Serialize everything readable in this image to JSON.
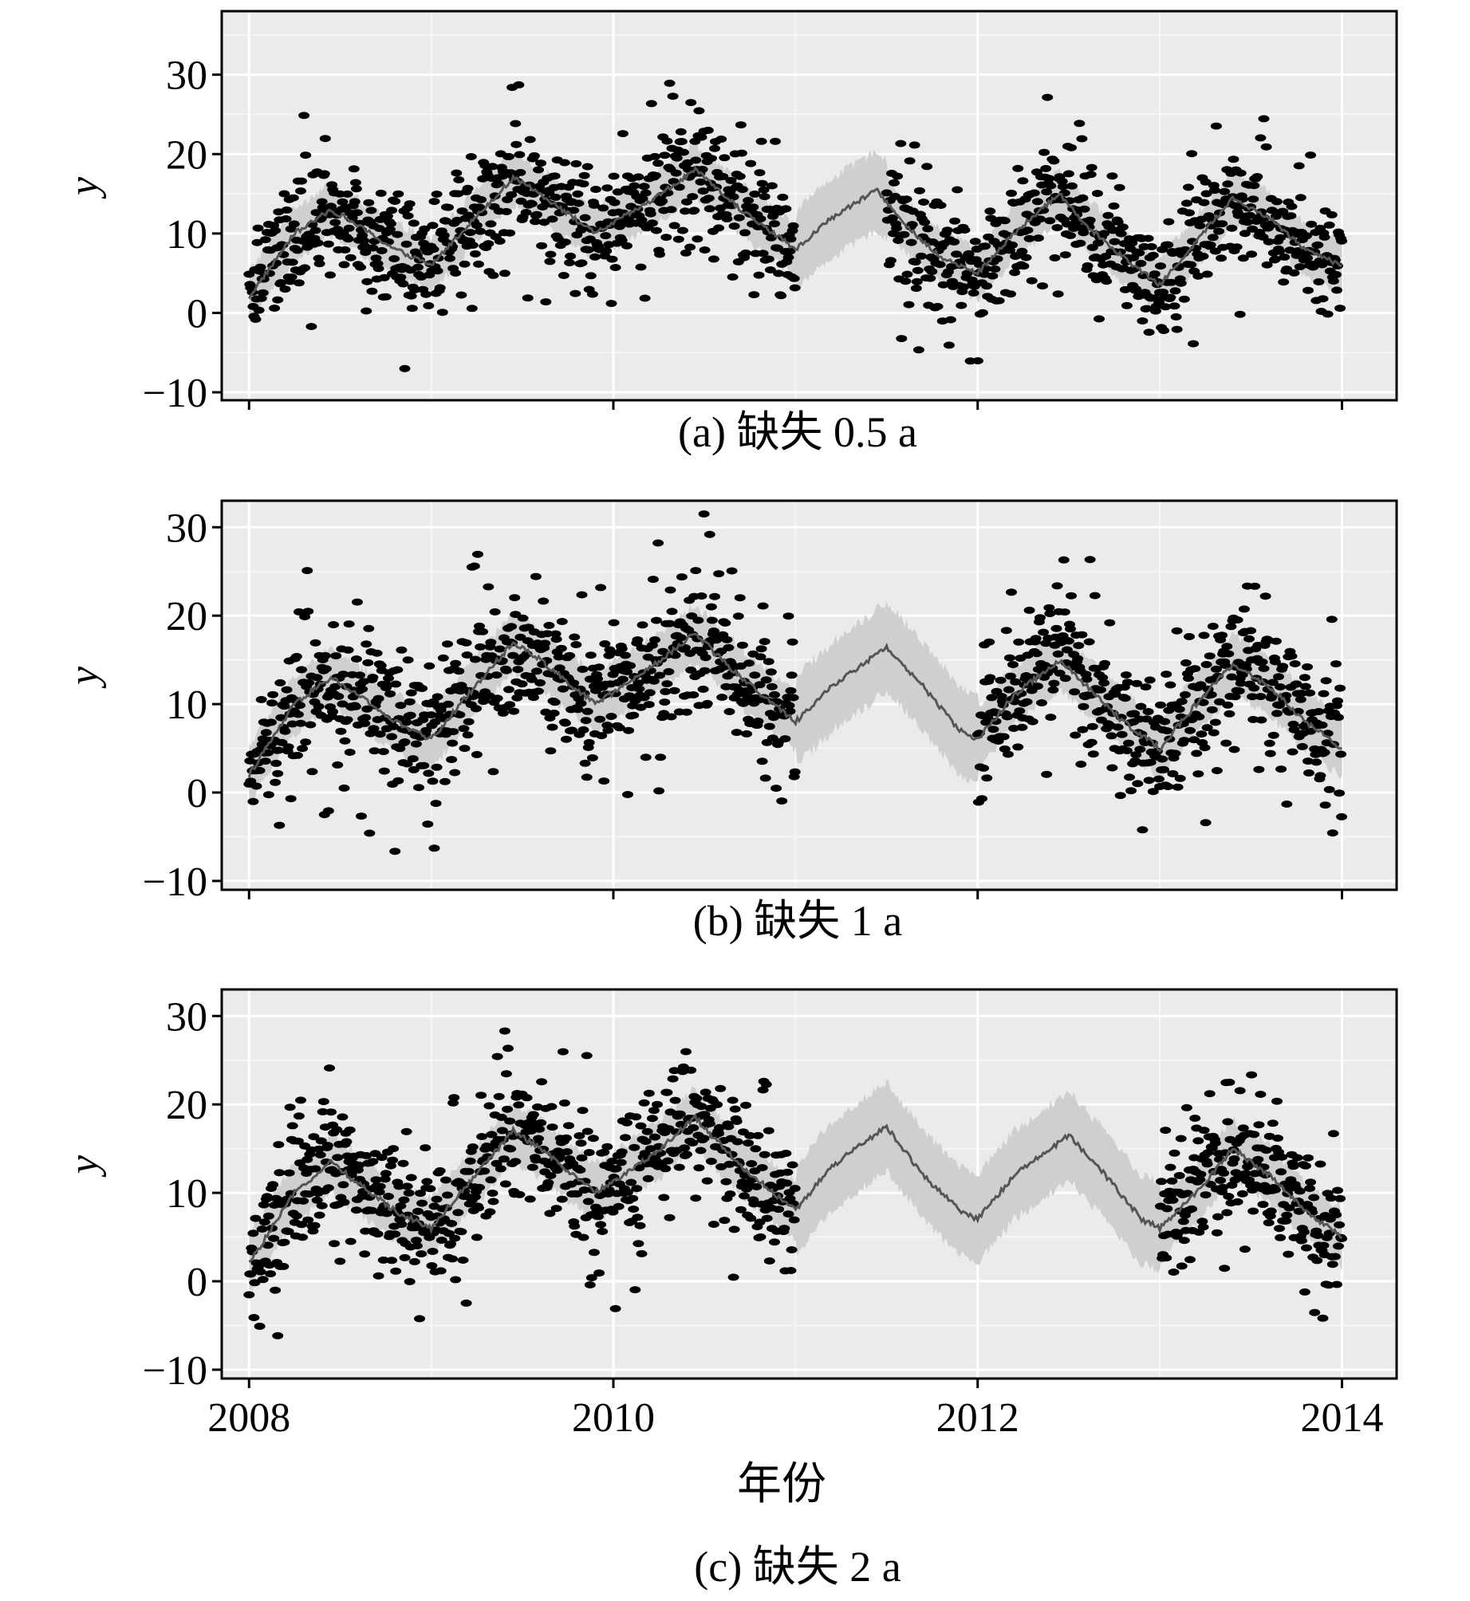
{
  "chart_data": [
    {
      "type": "line",
      "panel": "a",
      "caption": "(a) 缺失 0.5 a",
      "ylabel": "y",
      "xlabel": "",
      "xlim": [
        2007.85,
        2014.3
      ],
      "ylim": [
        -11,
        38
      ],
      "xticks": [
        2008,
        2010,
        2012,
        2014
      ],
      "yticks": [
        -10,
        0,
        10,
        20,
        30
      ],
      "ytick_labels": [
        "−10",
        "0",
        "10",
        "20",
        "30"
      ],
      "show_x_tick_labels": false,
      "grid": true,
      "missing_interval": [
        2011.0,
        2011.5
      ],
      "series": [
        {
          "role": "prediction",
          "x": [
            2008.0,
            2008.25,
            2008.45,
            2008.6,
            2008.8,
            2009.0,
            2009.2,
            2009.45,
            2009.6,
            2009.9,
            2010.2,
            2010.45,
            2010.7,
            2011.0,
            2011.2,
            2011.45,
            2011.6,
            2011.8,
            2012.0,
            2012.2,
            2012.45,
            2012.6,
            2012.8,
            2013.0,
            2013.2,
            2013.4,
            2013.6,
            2013.8,
            2014.0
          ],
          "y": [
            2.0,
            10.0,
            13.0,
            11.0,
            8.0,
            6.0,
            11.0,
            17.0,
            15.0,
            10.0,
            14.0,
            18.0,
            13.0,
            8.0,
            12.0,
            15.5,
            11.0,
            7.0,
            5.0,
            10.0,
            15.0,
            11.0,
            7.0,
            3.5,
            9.0,
            14.5,
            12.0,
            8.0,
            6.0
          ]
        }
      ]
    },
    {
      "type": "line",
      "panel": "b",
      "caption": "(b) 缺失 1 a",
      "ylabel": "y",
      "xlabel": "",
      "xlim": [
        2007.85,
        2014.3
      ],
      "ylim": [
        -11,
        33
      ],
      "xticks": [
        2008,
        2010,
        2012,
        2014
      ],
      "yticks": [
        -10,
        0,
        10,
        20,
        30
      ],
      "ytick_labels": [
        "−10",
        "0",
        "10",
        "20",
        "30"
      ],
      "show_x_tick_labels": false,
      "grid": true,
      "missing_interval": [
        2011.0,
        2012.0
      ],
      "series": [
        {
          "role": "prediction",
          "x": [
            2008.0,
            2008.25,
            2008.45,
            2008.6,
            2008.8,
            2009.0,
            2009.2,
            2009.45,
            2009.6,
            2009.9,
            2010.2,
            2010.45,
            2010.7,
            2011.0,
            2011.2,
            2011.5,
            2011.7,
            2011.9,
            2012.0,
            2012.2,
            2012.45,
            2012.6,
            2012.8,
            2013.0,
            2013.2,
            2013.4,
            2013.6,
            2013.8,
            2014.0
          ],
          "y": [
            2.0,
            10.0,
            13.0,
            11.0,
            8.0,
            6.0,
            11.0,
            17.0,
            15.0,
            10.0,
            14.0,
            18.0,
            13.0,
            8.0,
            12.0,
            16.5,
            12.0,
            7.0,
            6.0,
            11.0,
            15.0,
            12.0,
            8.0,
            5.0,
            10.0,
            14.5,
            12.0,
            8.0,
            5.0
          ]
        }
      ]
    },
    {
      "type": "line",
      "panel": "c",
      "caption": "(c) 缺失 2 a",
      "ylabel": "y",
      "xlabel": "年份",
      "xlim": [
        2007.85,
        2014.3
      ],
      "ylim": [
        -11,
        33
      ],
      "xticks": [
        2008,
        2010,
        2012,
        2014
      ],
      "yticks": [
        -10,
        0,
        10,
        20,
        30
      ],
      "ytick_labels": [
        "−10",
        "0",
        "10",
        "20",
        "30"
      ],
      "xtick_labels": [
        "2008",
        "2010",
        "2012",
        "2014"
      ],
      "show_x_tick_labels": true,
      "grid": true,
      "missing_interval": [
        2011.0,
        2013.0
      ],
      "series": [
        {
          "role": "prediction",
          "x": [
            2008.0,
            2008.25,
            2008.45,
            2008.6,
            2008.8,
            2009.0,
            2009.2,
            2009.45,
            2009.6,
            2009.9,
            2010.2,
            2010.45,
            2010.7,
            2011.0,
            2011.2,
            2011.5,
            2011.7,
            2011.9,
            2012.0,
            2012.2,
            2012.5,
            2012.7,
            2012.9,
            2013.0,
            2013.2,
            2013.4,
            2013.6,
            2013.8,
            2014.0
          ],
          "y": [
            2.0,
            10.0,
            13.5,
            11.0,
            8.0,
            6.0,
            11.0,
            17.0,
            15.0,
            10.0,
            14.0,
            18.5,
            13.0,
            8.0,
            13.0,
            17.5,
            12.0,
            8.0,
            7.0,
            12.0,
            16.5,
            12.0,
            7.0,
            6.0,
            10.0,
            15.0,
            12.0,
            8.0,
            5.0
          ]
        }
      ]
    }
  ]
}
